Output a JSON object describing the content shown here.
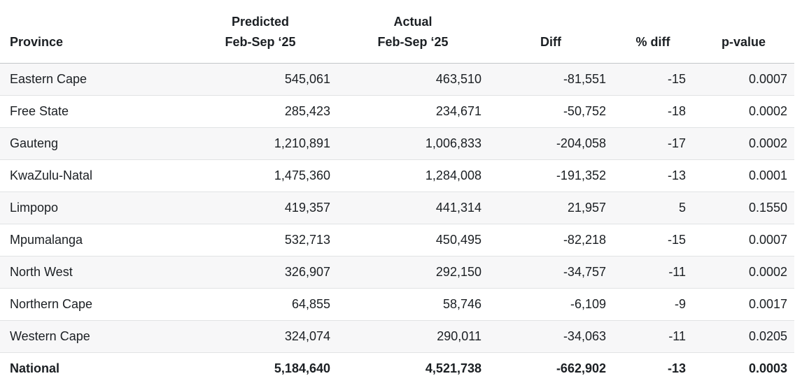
{
  "table": {
    "columns": {
      "province": "Province",
      "predicted": "Predicted\nFeb-Sep ‘25",
      "actual": "Actual\nFeb-Sep ‘25",
      "diff": "Diff",
      "pct_diff": "% diff",
      "p_value": "p-value"
    },
    "rows": [
      {
        "province": "Eastern Cape",
        "predicted": "545,061",
        "actual": "463,510",
        "diff": "-81,551",
        "pct_diff": "-15",
        "p_value": "0.0007"
      },
      {
        "province": "Free State",
        "predicted": "285,423",
        "actual": "234,671",
        "diff": "-50,752",
        "pct_diff": "-18",
        "p_value": "0.0002"
      },
      {
        "province": "Gauteng",
        "predicted": "1,210,891",
        "actual": "1,006,833",
        "diff": "-204,058",
        "pct_diff": "-17",
        "p_value": "0.0002"
      },
      {
        "province": "KwaZulu-Natal",
        "predicted": "1,475,360",
        "actual": "1,284,008",
        "diff": "-191,352",
        "pct_diff": "-13",
        "p_value": "0.0001"
      },
      {
        "province": "Limpopo",
        "predicted": "419,357",
        "actual": "441,314",
        "diff": "21,957",
        "pct_diff": "5",
        "p_value": "0.1550"
      },
      {
        "province": "Mpumalanga",
        "predicted": "532,713",
        "actual": "450,495",
        "diff": "-82,218",
        "pct_diff": "-15",
        "p_value": "0.0007"
      },
      {
        "province": "North West",
        "predicted": "326,907",
        "actual": "292,150",
        "diff": "-34,757",
        "pct_diff": "-11",
        "p_value": "0.0002"
      },
      {
        "province": "Northern Cape",
        "predicted": "64,855",
        "actual": "58,746",
        "diff": "-6,109",
        "pct_diff": "-9",
        "p_value": "0.0017"
      },
      {
        "province": "Western Cape",
        "predicted": "324,074",
        "actual": "290,011",
        "diff": "-34,063",
        "pct_diff": "-11",
        "p_value": "0.0205"
      }
    ],
    "total_row": {
      "province": "National",
      "predicted": "5,184,640",
      "actual": "4,521,738",
      "diff": "-662,902",
      "pct_diff": "-13",
      "p_value": "0.0003"
    },
    "colors": {
      "text": "#1b1f23",
      "stripe_background": "#f7f7f8",
      "row_border": "#e1e3e4",
      "header_border": "#c3c6c8"
    }
  }
}
